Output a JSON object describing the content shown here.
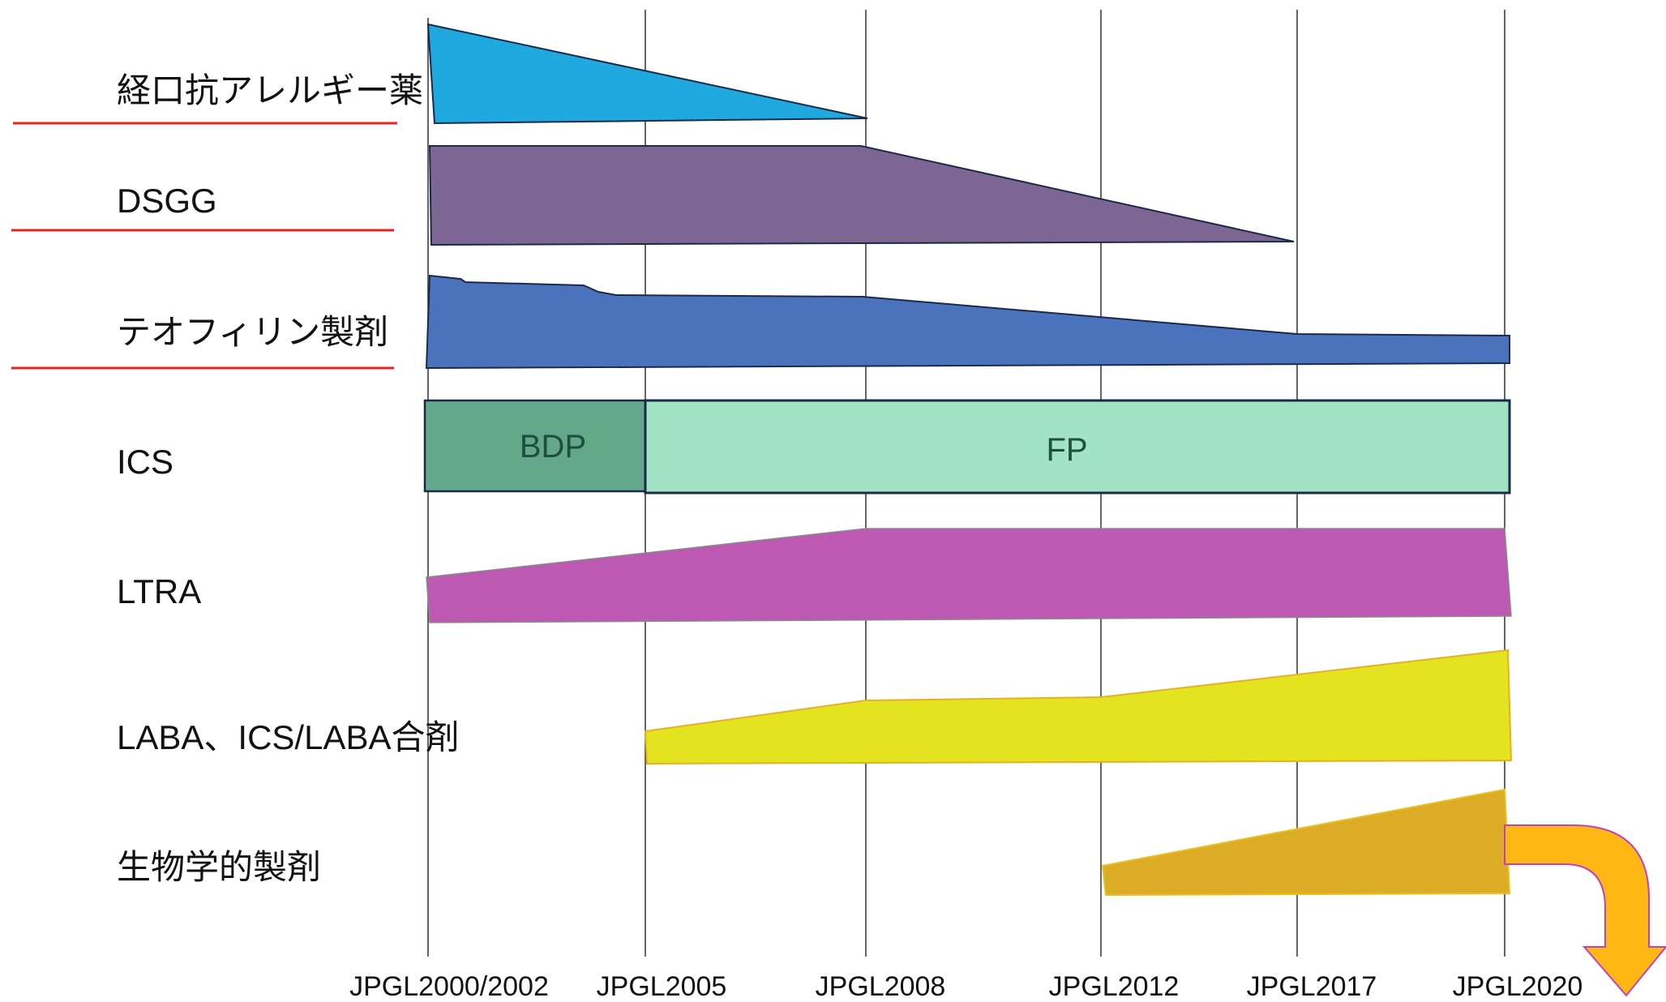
{
  "timeline": {
    "ticks": [
      "JPGL2000/2002",
      "JPGL2005",
      "JPGL2008",
      "JPGL2012",
      "JPGL2017",
      "JPGL2020"
    ]
  },
  "rows": [
    {
      "id": "oral-antiallergic",
      "label": "経口抗アレルギー薬",
      "color": "#1fa9df",
      "underline": true
    },
    {
      "id": "dsgg",
      "label": "DSGG",
      "color": "#7e6694",
      "underline": true
    },
    {
      "id": "theophylline",
      "label": "テオフィリン製剤",
      "color": "#4b73bd",
      "underline": true
    },
    {
      "id": "ics",
      "label": "ICS",
      "underline": false,
      "segments": [
        {
          "label": "BDP",
          "color": "#63a88b"
        },
        {
          "label": "FP",
          "color": "#a3e3c5"
        }
      ]
    },
    {
      "id": "ltra",
      "label": "LTRA",
      "color": "#bd59b3",
      "underline": false
    },
    {
      "id": "laba",
      "label": "LABA、ICS/LABA合剤",
      "color": "#e3e320",
      "underline": false
    },
    {
      "id": "biologics",
      "label": "生物学的製剤",
      "color": "#dcac27",
      "underline": false
    }
  ],
  "colors": {
    "underline": "#e8211d",
    "gridline": "#333333",
    "arrow": "#fdb813",
    "arrow_outline": "#c040c0"
  }
}
